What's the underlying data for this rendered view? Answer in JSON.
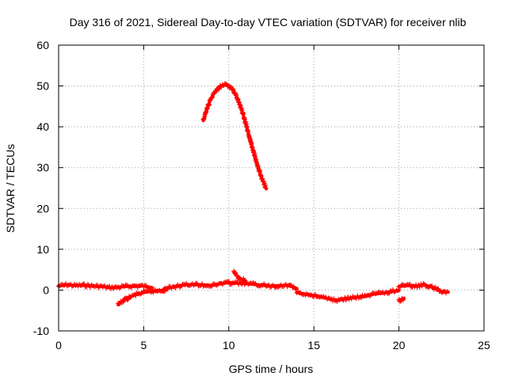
{
  "chart_data": {
    "type": "scatter",
    "title": "Day 316 of 2021, Sidereal Day-to-day VTEC variation (SDTVAR) for receiver nlib",
    "xlabel": "GPS time / hours",
    "ylabel": "SDTVAR / TECUs",
    "xlim": [
      0,
      25
    ],
    "ylim": [
      -10,
      60
    ],
    "xticks": [
      "0",
      "5",
      "10",
      "15",
      "20",
      "25"
    ],
    "yticks": [
      "-10",
      "0",
      "10",
      "20",
      "30",
      "40",
      "50",
      "60"
    ],
    "grid": true,
    "marker": "+",
    "color": "#ff0000",
    "series": [
      {
        "name": "SDTVAR",
        "segments": [
          {
            "x": [
              0.0,
              0.5,
              1.0,
              1.5,
              2.0,
              2.5,
              3.0,
              3.5,
              4.0,
              4.5,
              5.0,
              5.5
            ],
            "y": [
              1.0,
              1.3,
              1.1,
              1.2,
              1.0,
              0.9,
              0.6,
              0.7,
              0.9,
              1.0,
              1.0,
              0.6
            ]
          },
          {
            "x": [
              3.5,
              3.8,
              4.2,
              4.6,
              5.0,
              5.5,
              6.0,
              6.3
            ],
            "y": [
              -3.6,
              -2.6,
              -1.7,
              -1.0,
              -0.6,
              -0.3,
              -0.1,
              0.0
            ]
          },
          {
            "x": [
              6.2,
              7.0,
              7.5,
              8.0,
              8.5,
              9.0,
              9.5,
              10.0,
              10.5,
              11.0,
              11.5,
              12.0,
              12.5,
              13.0,
              13.5,
              14.0
            ],
            "y": [
              0.3,
              1.0,
              1.3,
              1.4,
              1.3,
              1.1,
              1.6,
              1.8,
              1.7,
              1.6,
              1.4,
              1.2,
              1.0,
              1.1,
              1.2,
              0.4
            ]
          },
          {
            "x": [
              10.3,
              10.6,
              11.0
            ],
            "y": [
              4.3,
              3.0,
              2.2
            ]
          },
          {
            "x": [
              14.0,
              14.5,
              15.0,
              15.5,
              16.0,
              16.3,
              16.7,
              17.0,
              17.5,
              18.0,
              18.5,
              19.0,
              19.5,
              20.0
            ],
            "y": [
              -0.6,
              -1.0,
              -1.3,
              -1.7,
              -2.3,
              -2.5,
              -2.3,
              -2.0,
              -1.8,
              -1.5,
              -1.0,
              -0.8,
              -0.4,
              -0.1
            ]
          },
          {
            "x": [
              20.0,
              20.3
            ],
            "y": [
              -2.6,
              -2.0
            ]
          },
          {
            "x": [
              20.0,
              20.5,
              21.0,
              21.5,
              22.0,
              22.5,
              22.9
            ],
            "y": [
              0.9,
              1.1,
              1.0,
              1.3,
              0.6,
              -0.3,
              -0.5
            ]
          },
          {
            "x": [
              8.5,
              8.7,
              8.9,
              9.1,
              9.3,
              9.5,
              9.7,
              9.9,
              10.1,
              10.3,
              10.5,
              10.7,
              10.9,
              11.1,
              11.3,
              11.5,
              11.7,
              11.9,
              12.1,
              12.2
            ],
            "y": [
              41.5,
              44.2,
              46.4,
              48.0,
              49.1,
              49.8,
              50.2,
              50.2,
              49.7,
              48.7,
              47.0,
              44.8,
              42.2,
              39.2,
              36.2,
              33.2,
              30.3,
              27.8,
              25.8,
              24.8
            ]
          }
        ]
      }
    ]
  }
}
